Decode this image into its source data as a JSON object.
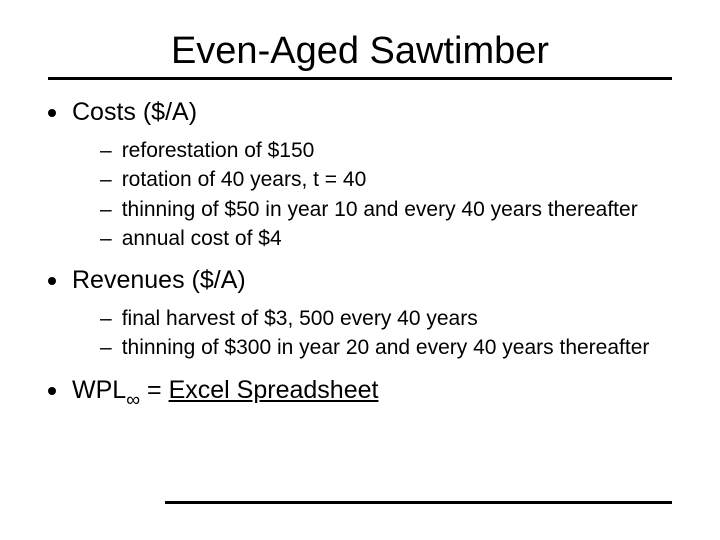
{
  "title": "Even-Aged Sawtimber",
  "costs": {
    "heading": "Costs ($/A)",
    "items": [
      "reforestation of $150",
      "rotation of 40 years, t = 40",
      "thinning of $50 in year 10 and every 40 years thereafter",
      "annual cost of $4"
    ]
  },
  "revenues": {
    "heading": "Revenues ($/A)",
    "items": [
      "final harvest of $3, 500 every 40 years",
      "thinning of $300 in year 20 and every 40 years thereafter"
    ]
  },
  "wpl": {
    "prefix": "WPL",
    "sub": "∞",
    "equals": " = ",
    "link_text": "Excel Spreadsheet"
  },
  "style": {
    "title_fontsize": 38,
    "bullet1_fontsize": 25,
    "bullet2_fontsize": 21,
    "text_color": "#000000",
    "background_color": "#ffffff",
    "rule_color": "#000000"
  }
}
